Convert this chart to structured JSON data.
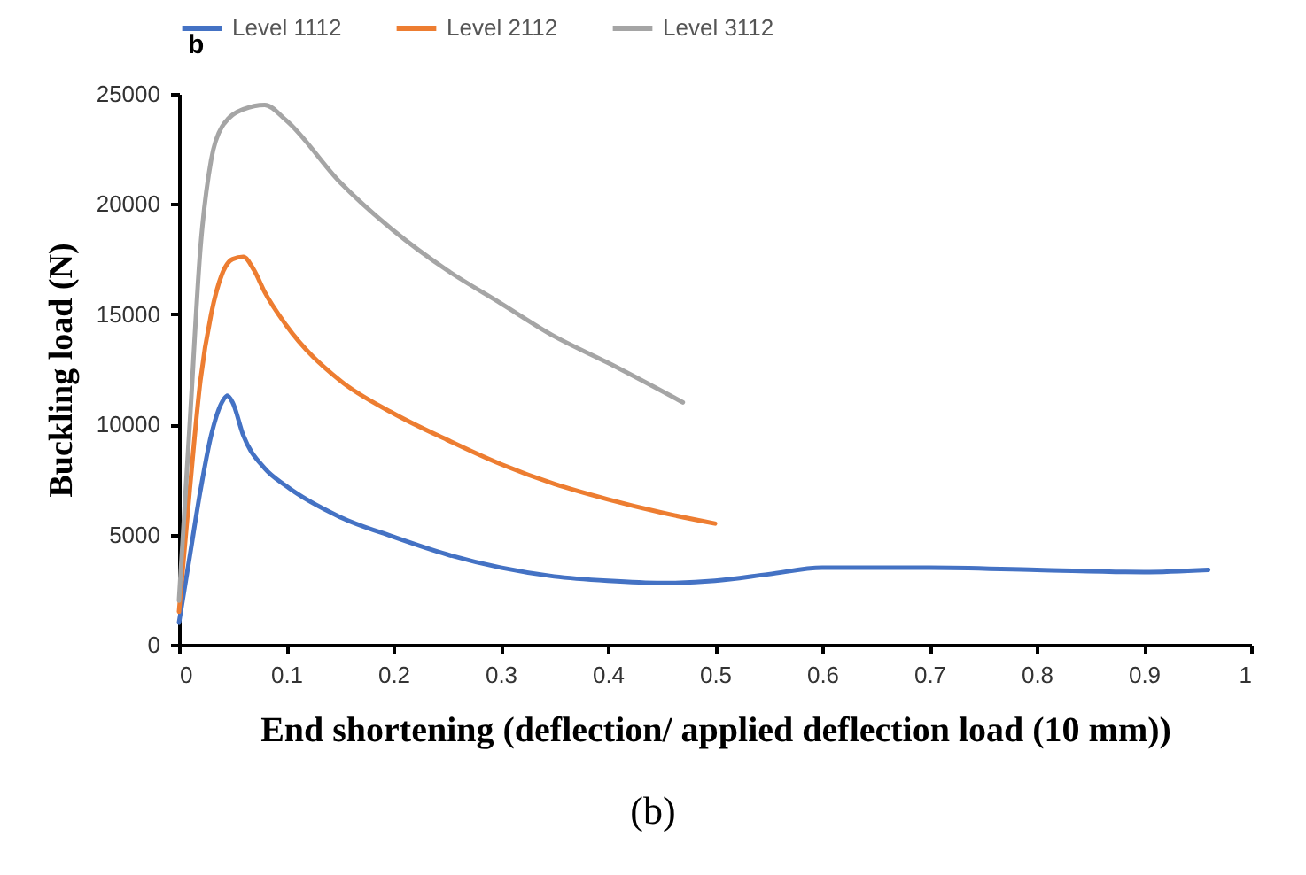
{
  "chart_data": {
    "type": "line",
    "title": "b",
    "xlabel": "End shortening (deflection/ applied deflection load (10 mm))",
    "ylabel": "Buckling load (N)",
    "xlim": [
      0,
      1
    ],
    "xticks": [
      0,
      0.1,
      0.2,
      0.3,
      0.4,
      0.5,
      0.6,
      0.7,
      0.8,
      0.9,
      1
    ],
    "ylim": [
      0,
      25000
    ],
    "yticks": [
      0,
      5000,
      10000,
      15000,
      20000,
      25000
    ],
    "legend": "top",
    "annotations": [
      "(b)"
    ],
    "series": [
      {
        "name": "Level 1112",
        "color": "#4472c4",
        "x": [
          0,
          0.01,
          0.02,
          0.03,
          0.04,
          0.045,
          0.05,
          0.06,
          0.08,
          0.1,
          0.15,
          0.2,
          0.25,
          0.3,
          0.35,
          0.4,
          0.45,
          0.5,
          0.55,
          0.6,
          0.65,
          0.7,
          0.8,
          0.9,
          0.96
        ],
        "values": [
          1000,
          4000,
          7000,
          9500,
          11000,
          11300,
          11000,
          9500,
          8000,
          7200,
          5800,
          4900,
          4100,
          3500,
          3100,
          2900,
          2800,
          2900,
          3200,
          3500,
          3500,
          3500,
          3400,
          3300,
          3400
        ]
      },
      {
        "name": "Level 2112",
        "color": "#ed7d31",
        "x": [
          0,
          0.01,
          0.02,
          0.03,
          0.04,
          0.05,
          0.06,
          0.07,
          0.08,
          0.1,
          0.15,
          0.2,
          0.25,
          0.3,
          0.35,
          0.4,
          0.45,
          0.5
        ],
        "values": [
          1500,
          7000,
          12000,
          15000,
          16800,
          17500,
          17600,
          17000,
          16000,
          14500,
          12000,
          10500,
          9300,
          8200,
          7300,
          6600,
          6000,
          5500
        ]
      },
      {
        "name": "Level 3112",
        "color": "#a5a5a5",
        "x": [
          0,
          0.01,
          0.02,
          0.03,
          0.04,
          0.06,
          0.08,
          0.1,
          0.15,
          0.2,
          0.25,
          0.3,
          0.35,
          0.4,
          0.47
        ],
        "values": [
          2000,
          10000,
          18000,
          22000,
          23500,
          24300,
          24500,
          23800,
          21000,
          18800,
          17000,
          15500,
          14000,
          12800,
          11000
        ]
      }
    ]
  }
}
